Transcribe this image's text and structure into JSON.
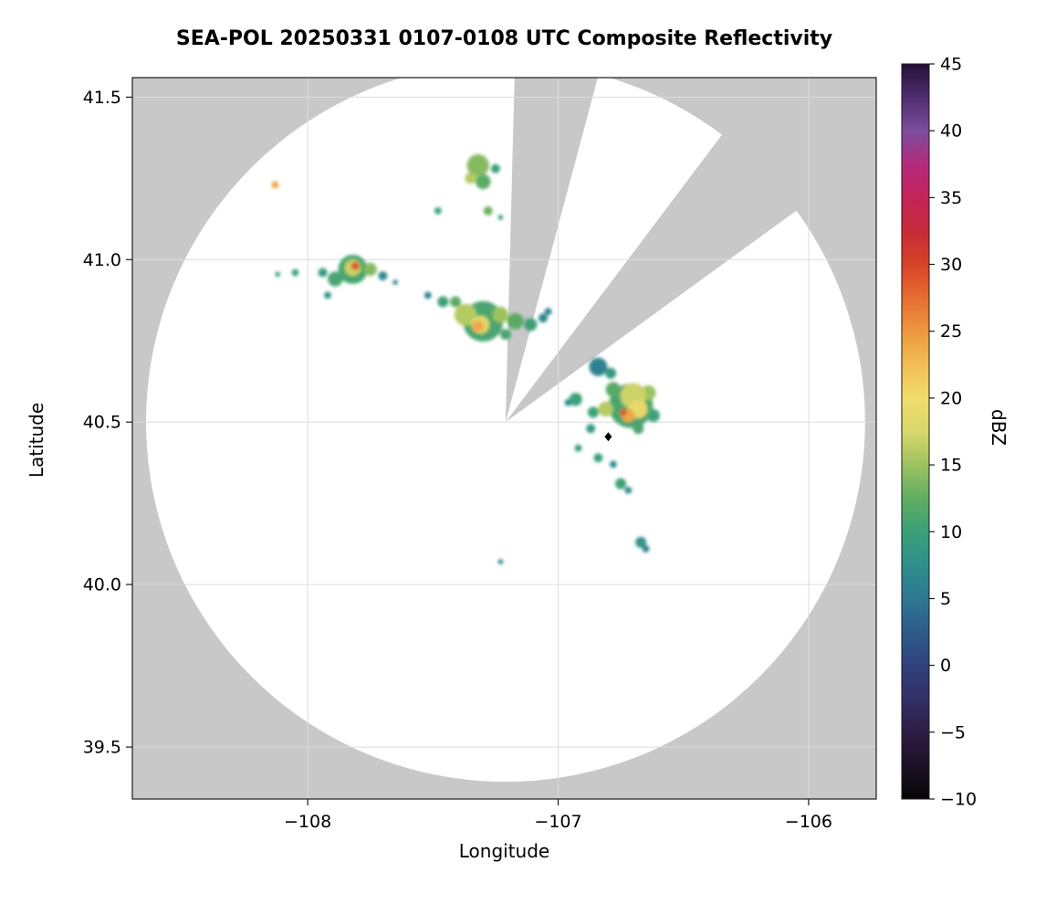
{
  "chart_data": {
    "type": "heatmap",
    "title": "SEA-POL 20250331 0107-0108 UTC Composite Reflectivity",
    "xlabel": "Longitude",
    "ylabel": "Latitude",
    "xlim": [
      -108.7,
      -105.73
    ],
    "ylim": [
      39.34,
      41.56
    ],
    "grid": true,
    "background_outside_scan": "#c8c8c8",
    "x_ticks": [
      {
        "value": -108,
        "label": "−108"
      },
      {
        "value": -107,
        "label": "−107"
      },
      {
        "value": -106,
        "label": "−106"
      }
    ],
    "y_ticks": [
      {
        "value": 41.5,
        "label": "41.5"
      },
      {
        "value": 41.0,
        "label": "41.0"
      },
      {
        "value": 40.5,
        "label": "40.5"
      },
      {
        "value": 40.0,
        "label": "40.0"
      },
      {
        "value": 39.5,
        "label": "39.5"
      }
    ],
    "radar": {
      "center_lon": -107.21,
      "center_lat": 40.5,
      "range_deg_lat": 1.107,
      "blocked_sectors_deg_azimuth": [
        [
          1.5,
          15
        ],
        [
          37,
          54
        ]
      ]
    },
    "site_marker": {
      "lon": -106.8,
      "lat": 40.455,
      "shape": "diamond",
      "color": "#000000"
    },
    "colorbar": {
      "label": "dBZ",
      "min": -10,
      "max": 45,
      "tick_values": [
        45,
        40,
        35,
        30,
        25,
        20,
        15,
        10,
        5,
        0,
        -5,
        -10
      ],
      "tick_labels": [
        "45",
        "40",
        "35",
        "30",
        "25",
        "20",
        "15",
        "10",
        "5",
        "0",
        "−5",
        "−10"
      ]
    },
    "colormap": [
      [
        -10,
        "#050505"
      ],
      [
        -7.5,
        "#1c1126"
      ],
      [
        -5,
        "#2d1d45"
      ],
      [
        -2.5,
        "#333066"
      ],
      [
        0,
        "#31417c"
      ],
      [
        2.5,
        "#2e5b8a"
      ],
      [
        5,
        "#2e7793"
      ],
      [
        7.5,
        "#2f8f8c"
      ],
      [
        10,
        "#3aa077"
      ],
      [
        12.5,
        "#62ad62"
      ],
      [
        15,
        "#9cc35f"
      ],
      [
        17.5,
        "#d8d76a"
      ],
      [
        20,
        "#f2dc6c"
      ],
      [
        22.5,
        "#f2bd54"
      ],
      [
        25,
        "#ee973f"
      ],
      [
        27.5,
        "#e66d30"
      ],
      [
        30,
        "#d84327"
      ],
      [
        32.5,
        "#c62a38"
      ],
      [
        35,
        "#c22458"
      ],
      [
        37.5,
        "#b52a7c"
      ],
      [
        40,
        "#7b4d9e"
      ],
      [
        42.5,
        "#4f2d6e"
      ],
      [
        45,
        "#241038"
      ]
    ],
    "cells": [
      [
        -107.32,
        41.29,
        0.034,
        14
      ],
      [
        -107.3,
        41.24,
        0.023,
        12
      ],
      [
        -107.35,
        41.25,
        0.017,
        16
      ],
      [
        -107.25,
        41.28,
        0.014,
        10
      ],
      [
        -107.33,
        41.31,
        0.012,
        11
      ],
      [
        -107.48,
        41.15,
        0.011,
        10
      ],
      [
        -107.28,
        41.15,
        0.014,
        13
      ],
      [
        -107.23,
        41.13,
        0.008,
        9
      ],
      [
        -108.13,
        41.23,
        0.011,
        24
      ],
      [
        -107.82,
        40.97,
        0.045,
        11
      ],
      [
        -107.82,
        40.975,
        0.025,
        17
      ],
      [
        -107.81,
        40.98,
        0.013,
        29
      ],
      [
        -107.89,
        40.94,
        0.023,
        11
      ],
      [
        -107.75,
        40.97,
        0.02,
        14
      ],
      [
        -107.7,
        40.95,
        0.014,
        7
      ],
      [
        -107.94,
        40.96,
        0.014,
        9
      ],
      [
        -108.05,
        40.96,
        0.011,
        10
      ],
      [
        -108.12,
        40.955,
        0.008,
        9
      ],
      [
        -107.92,
        40.89,
        0.011,
        8
      ],
      [
        -107.65,
        40.93,
        0.008,
        6
      ],
      [
        -107.3,
        40.81,
        0.062,
        11
      ],
      [
        -107.37,
        40.83,
        0.034,
        16
      ],
      [
        -107.31,
        40.8,
        0.028,
        18
      ],
      [
        -107.32,
        40.795,
        0.017,
        24
      ],
      [
        -107.23,
        40.83,
        0.025,
        15
      ],
      [
        -107.17,
        40.81,
        0.025,
        12
      ],
      [
        -107.11,
        40.8,
        0.02,
        10
      ],
      [
        -107.06,
        40.82,
        0.014,
        7
      ],
      [
        -107.46,
        40.87,
        0.017,
        10
      ],
      [
        -107.52,
        40.89,
        0.011,
        6
      ],
      [
        -107.41,
        40.87,
        0.017,
        12
      ],
      [
        -107.21,
        40.77,
        0.017,
        11
      ],
      [
        -107.04,
        40.84,
        0.011,
        6
      ],
      [
        -106.84,
        40.67,
        0.028,
        6
      ],
      [
        -106.845,
        40.68,
        0.017,
        3
      ],
      [
        -106.79,
        40.65,
        0.017,
        9
      ],
      [
        -106.71,
        40.55,
        0.068,
        11
      ],
      [
        -106.7,
        40.58,
        0.04,
        17
      ],
      [
        -106.68,
        40.54,
        0.028,
        19
      ],
      [
        -106.72,
        40.52,
        0.02,
        24
      ],
      [
        -106.74,
        40.53,
        0.011,
        29
      ],
      [
        -106.64,
        40.59,
        0.023,
        15
      ],
      [
        -106.78,
        40.6,
        0.023,
        12
      ],
      [
        -106.62,
        40.52,
        0.02,
        10
      ],
      [
        -106.68,
        40.48,
        0.017,
        11
      ],
      [
        -106.81,
        40.54,
        0.023,
        16
      ],
      [
        -106.86,
        40.53,
        0.017,
        10
      ],
      [
        -106.93,
        40.57,
        0.02,
        10
      ],
      [
        -106.96,
        40.56,
        0.011,
        7
      ],
      [
        -106.87,
        40.48,
        0.014,
        9
      ],
      [
        -106.92,
        40.42,
        0.011,
        9
      ],
      [
        -106.84,
        40.39,
        0.014,
        10
      ],
      [
        -106.78,
        40.37,
        0.011,
        7
      ],
      [
        -106.75,
        40.31,
        0.017,
        10
      ],
      [
        -106.72,
        40.29,
        0.011,
        7
      ],
      [
        -106.67,
        40.13,
        0.017,
        8
      ],
      [
        -106.65,
        40.11,
        0.011,
        6
      ],
      [
        -107.23,
        40.07,
        0.008,
        6
      ]
    ]
  }
}
